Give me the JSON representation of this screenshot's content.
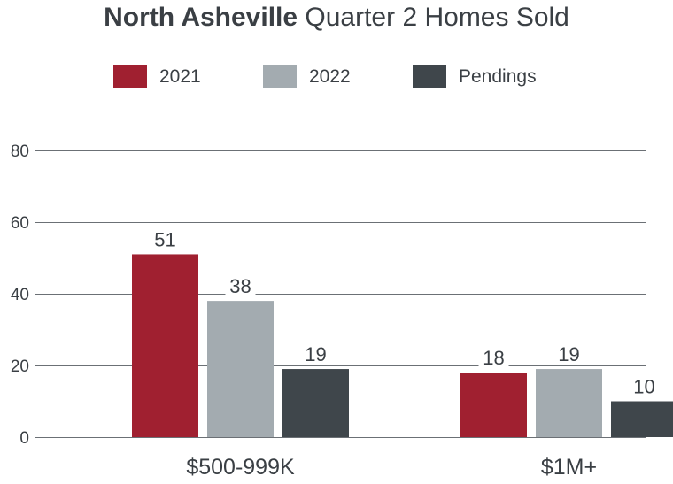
{
  "title_bold": "North Asheville",
  "title_rest": "Quarter 2 Homes Sold",
  "chart_data": {
    "type": "bar",
    "categories": [
      "$500-999K",
      "$1M+"
    ],
    "series": [
      {
        "name": "2021",
        "values": [
          51,
          18
        ],
        "color": "#a02030"
      },
      {
        "name": "2022",
        "values": [
          38,
          19
        ],
        "color": "#a3abb0"
      },
      {
        "name": "Pendings",
        "values": [
          19,
          10
        ],
        "color": "#3f464b"
      }
    ],
    "y_ticks": [
      "0",
      "20",
      "40",
      "60",
      "80"
    ],
    "ylim": [
      0,
      80
    ],
    "grid": true,
    "legend_position": "top-center"
  }
}
